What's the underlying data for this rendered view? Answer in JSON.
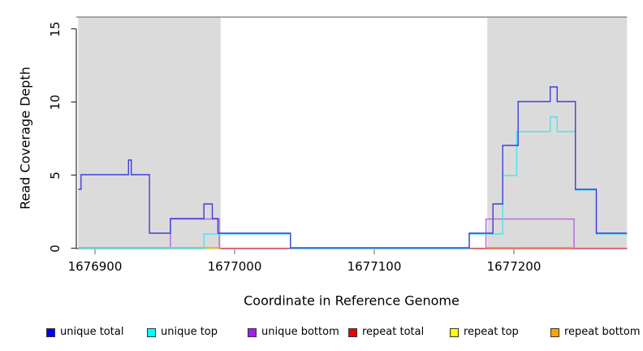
{
  "figure": {
    "x_axis": {
      "label": "Coordinate in Reference Genome",
      "tick_labels": [
        "1676900",
        "1677000",
        "1677100",
        "1677200"
      ]
    },
    "y_axis": {
      "label": "Read Coverage Depth",
      "tick_labels": [
        "0",
        "5",
        "10",
        "15"
      ]
    },
    "legend": [
      {
        "label": "unique total",
        "color": "#0000FF"
      },
      {
        "label": "unique top",
        "color": "#00FFFF"
      },
      {
        "label": "unique bottom",
        "color": "#A020F0"
      },
      {
        "label": "repeat total",
        "color": "#EE0000"
      },
      {
        "label": "repeat top",
        "color": "#FFFF00"
      },
      {
        "label": "repeat bottom",
        "color": "#FFA500"
      }
    ]
  },
  "chart_data": {
    "type": "line",
    "line_style": "step",
    "title": "",
    "xlabel": "Coordinate in Reference Genome",
    "ylabel": "Read Coverage Depth",
    "xlim": [
      1676886,
      1677281
    ],
    "ylim": [
      0,
      15.8
    ],
    "x_ticks": [
      1676900,
      1677000,
      1677100,
      1677200
    ],
    "y_ticks": [
      0,
      5,
      10,
      15
    ],
    "grid": false,
    "legend_position": "bottom",
    "shaded_regions": [
      {
        "x0": 1676888,
        "x1": 1676990,
        "color": "#DBDBDB",
        "meaning": "repeat region"
      },
      {
        "x0": 1677181,
        "x1": 1677281,
        "color": "#DBDBDB",
        "meaning": "repeat region"
      }
    ],
    "series": [
      {
        "name": "unique total",
        "color": "#0000FF",
        "runs": [
          {
            "steps": [
              [
                1676888,
                4
              ],
              [
                1676890,
                5
              ],
              [
                1676924,
                6
              ],
              [
                1676926,
                5
              ],
              [
                1676939,
                1
              ],
              [
                1676954,
                2
              ],
              [
                1676978,
                3
              ],
              [
                1676984,
                2
              ],
              [
                1676988,
                1
              ],
              [
                1677040,
                0
              ],
              [
                1677168,
                1
              ],
              [
                1677185,
                3
              ],
              [
                1677192,
                7
              ],
              [
                1677203,
                10
              ],
              [
                1677226,
                11
              ],
              [
                1677231,
                10
              ],
              [
                1677244,
                4
              ],
              [
                1677259,
                1
              ]
            ],
            "end": 1677281
          }
        ]
      },
      {
        "name": "unique top",
        "color": "#00FFFF",
        "runs": [
          {
            "steps": [
              [
                1676888,
                0
              ],
              [
                1676978,
                1
              ],
              [
                1677040,
                0
              ],
              [
                1677168,
                1
              ],
              [
                1677192,
                5
              ],
              [
                1677202,
                8
              ],
              [
                1677226,
                9
              ],
              [
                1677231,
                8
              ],
              [
                1677244,
                4
              ],
              [
                1677259,
                1
              ]
            ],
            "end": 1677281
          }
        ]
      },
      {
        "name": "unique bottom",
        "color": "#A020F0",
        "runs": [
          {
            "steps": [
              [
                1676888,
                0
              ],
              [
                1676954,
                2
              ],
              [
                1676989,
                0
              ],
              [
                1677180,
                2
              ],
              [
                1677243,
                0
              ]
            ],
            "end": 1677281
          }
        ]
      },
      {
        "name": "repeat total",
        "color": "#EE0000",
        "runs": [
          {
            "steps": [
              [
                1676990,
                0
              ]
            ],
            "end": 1677281
          }
        ]
      },
      {
        "name": "repeat top",
        "color": "#FFFF00",
        "runs": [
          {
            "steps": [
              [
                1676888,
                0
              ]
            ],
            "end": 1677281
          }
        ]
      },
      {
        "name": "repeat bottom",
        "color": "#FFA500",
        "runs": [
          {
            "steps": [
              [
                1676888,
                0
              ]
            ],
            "end": 1676990
          },
          {
            "steps": [
              [
                1677180,
                0
              ]
            ],
            "end": 1677243
          }
        ]
      }
    ]
  }
}
